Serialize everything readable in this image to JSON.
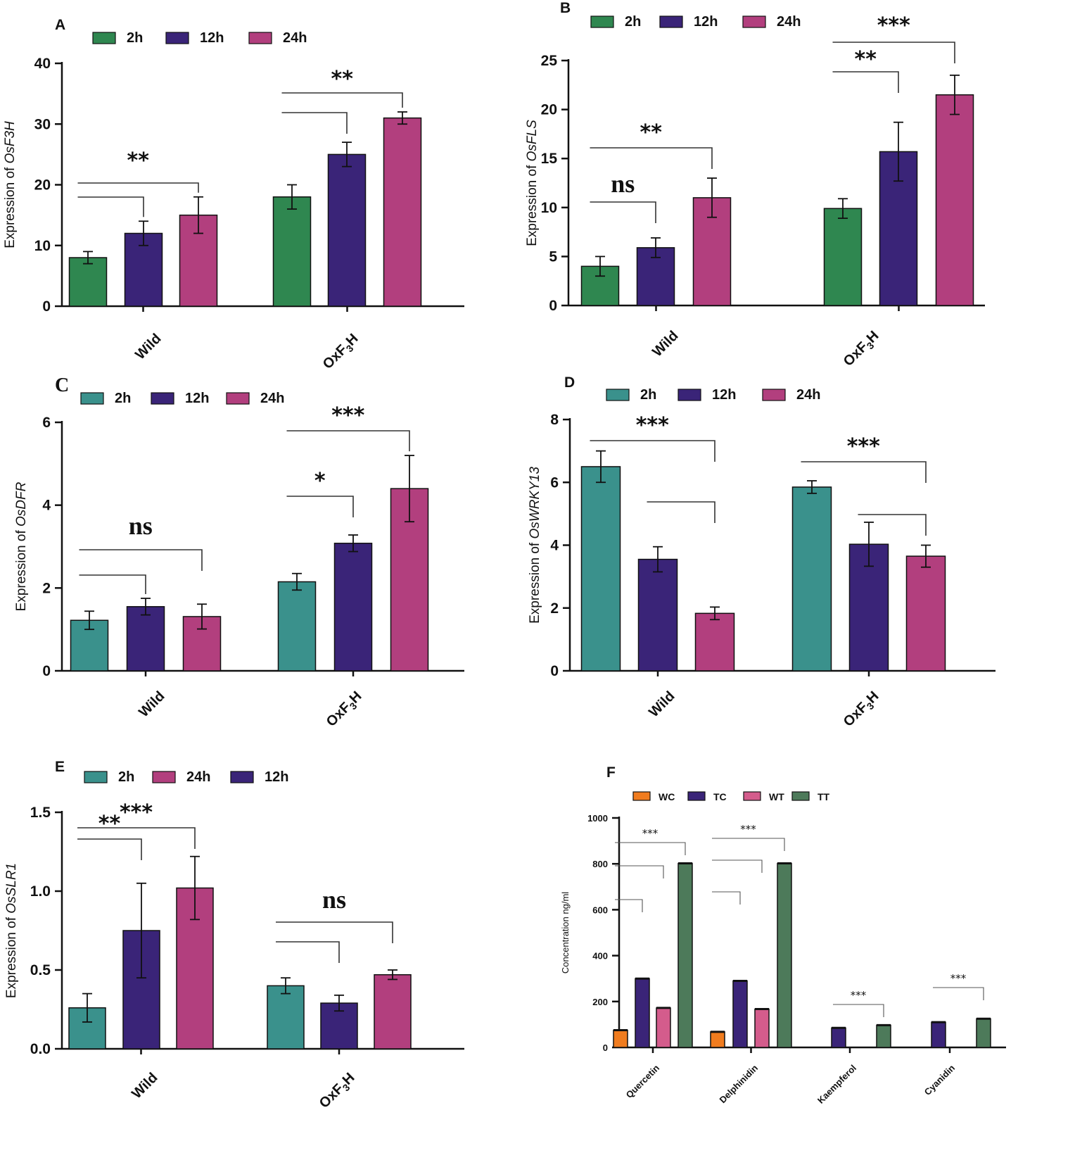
{
  "colors": {
    "green": "#2f8750",
    "teal": "#3a918c",
    "purple": "#3a2478",
    "pink": "#b23f7e",
    "orange": "#f07c1f",
    "f_pink": "#d45c8c",
    "f_green": "#4d7a5a"
  },
  "chart_data": [
    {
      "panel": "A",
      "type": "bar",
      "title": "",
      "ylabel_prefix": "Expression of ",
      "ylabel_gene": "OsF3H",
      "categories": [
        "Wild",
        "OxF3H"
      ],
      "ylim": [
        0,
        40
      ],
      "yticks": [
        "0",
        "10",
        "20",
        "30",
        "40"
      ],
      "legend": [
        "2h",
        "12h",
        "24h"
      ],
      "series": [
        {
          "name": "2h",
          "color": "green",
          "values": [
            8,
            18
          ],
          "errors": [
            1,
            2
          ]
        },
        {
          "name": "12h",
          "color": "purple",
          "values": [
            12,
            25
          ],
          "errors": [
            2,
            2
          ]
        },
        {
          "name": "24h",
          "color": "pink",
          "values": [
            15,
            31
          ],
          "errors": [
            3,
            1
          ]
        }
      ],
      "significance": [
        {
          "group": 0,
          "from": 0,
          "to": 1,
          "label": ""
        },
        {
          "group": 0,
          "from": 0,
          "to": 2,
          "label": "**"
        },
        {
          "group": 1,
          "from": 0,
          "to": 1,
          "label": ""
        },
        {
          "group": 1,
          "from": 0,
          "to": 2,
          "label": "**"
        }
      ]
    },
    {
      "panel": "B",
      "type": "bar",
      "title": "",
      "ylabel_prefix": "Expression of ",
      "ylabel_gene": "OsFLS",
      "categories": [
        "Wild",
        "OxF3H"
      ],
      "ylim": [
        0,
        25
      ],
      "yticks": [
        "0",
        "5",
        "10",
        "15",
        "20",
        "25"
      ],
      "legend": [
        "2h",
        "12h",
        "24h"
      ],
      "series": [
        {
          "name": "2h",
          "color": "green",
          "values": [
            4,
            9.9
          ],
          "errors": [
            1,
            1
          ]
        },
        {
          "name": "12h",
          "color": "purple",
          "values": [
            5.9,
            15.7
          ],
          "errors": [
            1,
            3
          ]
        },
        {
          "name": "24h",
          "color": "pink",
          "values": [
            11,
            21.5
          ],
          "errors": [
            2,
            2
          ]
        }
      ],
      "significance": [
        {
          "group": 0,
          "from": 0,
          "to": 1,
          "label": "ns"
        },
        {
          "group": 0,
          "from": 0,
          "to": 2,
          "label": "**"
        },
        {
          "group": 1,
          "from": 0,
          "to": 1,
          "label": "**"
        },
        {
          "group": 1,
          "from": 0,
          "to": 2,
          "label": "***"
        }
      ]
    },
    {
      "panel": "C",
      "type": "bar",
      "title": "",
      "ylabel_prefix": "Expression of ",
      "ylabel_gene": "OsDFR",
      "categories": [
        "Wild",
        "OxF3H"
      ],
      "ylim": [
        0,
        6
      ],
      "yticks": [
        "0",
        "2",
        "4",
        "6"
      ],
      "legend": [
        "2h",
        "12h",
        "24h"
      ],
      "series": [
        {
          "name": "2h",
          "color": "teal",
          "values": [
            1.22,
            2.15
          ],
          "errors": [
            0.22,
            0.2
          ]
        },
        {
          "name": "12h",
          "color": "purple",
          "values": [
            1.55,
            3.08
          ],
          "errors": [
            0.2,
            0.2
          ]
        },
        {
          "name": "24h",
          "color": "pink",
          "values": [
            1.31,
            4.4
          ],
          "errors": [
            0.3,
            0.8
          ]
        }
      ],
      "significance": [
        {
          "group": 0,
          "from": 0,
          "to": 1,
          "label": ""
        },
        {
          "group": 0,
          "from": 0,
          "to": 2,
          "label": "ns"
        },
        {
          "group": 1,
          "from": 0,
          "to": 1,
          "label": "*"
        },
        {
          "group": 1,
          "from": 0,
          "to": 2,
          "label": "***"
        }
      ]
    },
    {
      "panel": "D",
      "type": "bar",
      "title": "",
      "ylabel_prefix": "Expression of ",
      "ylabel_gene": "OsWRKY13",
      "categories": [
        "Wild",
        "OxF3H"
      ],
      "ylim": [
        0,
        8
      ],
      "yticks": [
        "0",
        "2",
        "4",
        "6",
        "8"
      ],
      "legend": [
        "2h",
        "12h",
        "24h"
      ],
      "series": [
        {
          "name": "2h",
          "color": "teal",
          "values": [
            6.5,
            5.85
          ],
          "errors": [
            0.5,
            0.2
          ]
        },
        {
          "name": "12h",
          "color": "purple",
          "values": [
            3.55,
            4.03
          ],
          "errors": [
            0.4,
            0.7
          ]
        },
        {
          "name": "24h",
          "color": "pink",
          "values": [
            1.83,
            3.65
          ],
          "errors": [
            0.2,
            0.35
          ]
        }
      ],
      "significance": [
        {
          "group": 0,
          "from": 0,
          "to": 2,
          "label": "***"
        },
        {
          "group": 0,
          "from": 1,
          "to": 2,
          "label": ""
        },
        {
          "group": 1,
          "from": 0,
          "to": 2,
          "label": "***"
        },
        {
          "group": 1,
          "from": 1,
          "to": 2,
          "label": ""
        }
      ]
    },
    {
      "panel": "E",
      "type": "bar",
      "title": "",
      "ylabel_prefix": "Expression of ",
      "ylabel_gene": "OsSLR1",
      "categories": [
        "Wild",
        "OxF3H"
      ],
      "ylim": [
        0,
        1.5
      ],
      "yticks": [
        "0.0",
        "0.5",
        "1.0",
        "1.5"
      ],
      "legend": [
        "2h",
        "24h",
        "12h"
      ],
      "series": [
        {
          "name": "2h",
          "color": "teal",
          "values": [
            0.26,
            0.4
          ],
          "errors": [
            0.09,
            0.05
          ]
        },
        {
          "name": "12h",
          "color": "purple",
          "values": [
            0.75,
            0.29
          ],
          "errors": [
            0.3,
            0.05
          ]
        },
        {
          "name": "24h",
          "color": "pink",
          "values": [
            1.02,
            0.47
          ],
          "errors": [
            0.2,
            0.03
          ]
        }
      ],
      "significance": [
        {
          "group": 0,
          "from": 0,
          "to": 1,
          "label": "**"
        },
        {
          "group": 0,
          "from": 0,
          "to": 2,
          "label": "***"
        },
        {
          "group": 1,
          "from": 0,
          "to": 1,
          "label": ""
        },
        {
          "group": 1,
          "from": 0,
          "to": 2,
          "label": "ns"
        }
      ]
    },
    {
      "panel": "F",
      "type": "bar",
      "title": "",
      "ylabel": "Concentration ng/ml",
      "categories": [
        "Quercetin",
        "Delphinidin",
        "Kaempferol",
        "Cyanidin"
      ],
      "ylim": [
        0,
        1000
      ],
      "yticks": [
        "0",
        "200",
        "400",
        "600",
        "800",
        "1000"
      ],
      "legend": [
        "WC",
        "TC",
        "WT",
        "TT"
      ],
      "series": [
        {
          "name": "WC",
          "color": "orange",
          "values": [
            75,
            68,
            null,
            null
          ]
        },
        {
          "name": "TC",
          "color": "purple",
          "values": [
            300,
            290,
            85,
            110
          ]
        },
        {
          "name": "WT",
          "color": "f_pink",
          "values": [
            172,
            167,
            null,
            null
          ]
        },
        {
          "name": "TT",
          "color": "f_green",
          "values": [
            802,
            802,
            97,
            125
          ]
        }
      ],
      "significance": [
        {
          "group": 0,
          "from": 0,
          "to": 1,
          "label": ""
        },
        {
          "group": 0,
          "from": 0,
          "to": 2,
          "label": ""
        },
        {
          "group": 0,
          "from": 0,
          "to": 3,
          "label": "***"
        },
        {
          "group": 1,
          "from": 0,
          "to": 1,
          "label": ""
        },
        {
          "group": 1,
          "from": 0,
          "to": 2,
          "label": ""
        },
        {
          "group": 1,
          "from": 0,
          "to": 3,
          "label": "***"
        },
        {
          "group": 2,
          "from": 1,
          "to": 3,
          "label": "***"
        },
        {
          "group": 3,
          "from": 1,
          "to": 3,
          "label": "***"
        }
      ]
    }
  ]
}
